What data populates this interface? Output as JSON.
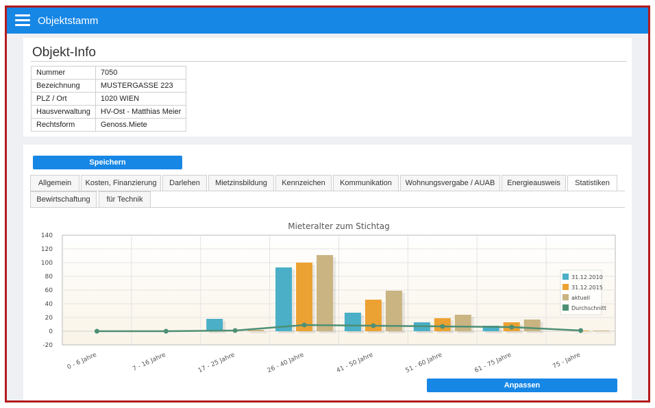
{
  "app": {
    "title": "Objektstamm"
  },
  "info": {
    "title": "Objekt-Info",
    "rows": [
      {
        "label": "Nummer",
        "value": "7050"
      },
      {
        "label": "Bezeichnung",
        "value": "MUSTERGASSE 223"
      },
      {
        "label": "PLZ / Ort",
        "value": "1020 WIEN"
      },
      {
        "label": "Hausverwaltung",
        "value": "HV-Ost - Matthias Meier"
      },
      {
        "label": "Rechtsform",
        "value": "Genoss.Miete"
      }
    ]
  },
  "actions": {
    "save": "Speichern",
    "adjust": "Anpassen"
  },
  "tabs": [
    {
      "label": "Allgemein"
    },
    {
      "label": "Kosten, Finanzierung"
    },
    {
      "label": "Darlehen"
    },
    {
      "label": "Mietzinsbildung"
    },
    {
      "label": "Kennzeichen"
    },
    {
      "label": "Kommunikation"
    },
    {
      "label": "Wohnungsvergabe / AUAB"
    },
    {
      "label": "Energieausweis"
    },
    {
      "label": "Statistiken",
      "active": true
    },
    {
      "label": "Bewirtschaftung"
    },
    {
      "label": "für Technik"
    }
  ],
  "chart_data": {
    "type": "bar",
    "title": "Mieteralter zum Stichtag",
    "categories": [
      "0 - 6 Jahre",
      "7 - 16 Jahre",
      "17 - 25 Jahre",
      "26 - 40 Jahre",
      "41 - 50 Jahre",
      "51 - 60 Jahre",
      "61 - 75 Jahre",
      "75 - Jahre"
    ],
    "series": [
      {
        "name": "31.12.2010",
        "type": "bar",
        "color": "#4aafc7",
        "values": [
          0,
          0,
          18,
          93,
          27,
          13,
          8,
          0
        ]
      },
      {
        "name": "31.12.2015",
        "type": "bar",
        "color": "#eca232",
        "values": [
          0,
          0,
          0,
          100,
          46,
          19,
          13,
          1
        ]
      },
      {
        "name": "aktuell",
        "type": "bar",
        "color": "#c9b482",
        "values": [
          0,
          0,
          2,
          111,
          59,
          24,
          17,
          1
        ]
      },
      {
        "name": "Durchschnitt",
        "type": "line",
        "color": "#4d8f74",
        "values": [
          0,
          0,
          1,
          9,
          8,
          7,
          6,
          1
        ]
      }
    ],
    "ylim": [
      -20,
      140
    ],
    "yticks": [
      140,
      120,
      100,
      80,
      60,
      40,
      20,
      0,
      -20
    ],
    "grid": true,
    "legend": "right"
  }
}
